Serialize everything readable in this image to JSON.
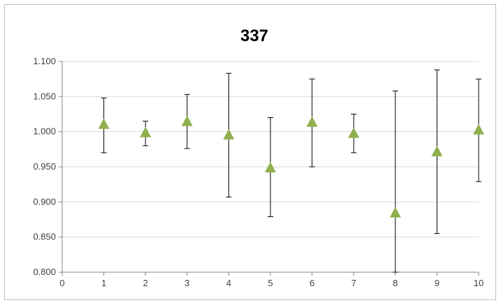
{
  "chart_data": {
    "type": "scatter",
    "title": "337",
    "xlabel": "",
    "ylabel": "",
    "xlim": [
      0,
      10
    ],
    "ylim": [
      0.8,
      1.1
    ],
    "x_ticks": [
      "0",
      "1",
      "2",
      "3",
      "4",
      "5",
      "6",
      "7",
      "8",
      "9",
      "10"
    ],
    "y_ticks": [
      "0.800",
      "0.850",
      "0.900",
      "0.950",
      "1.000",
      "1.050",
      "1.100"
    ],
    "grid": true,
    "legend": "none",
    "marker": "triangle",
    "marker_color": "#8fb04d",
    "series": [
      {
        "x": [
          1,
          2,
          3,
          4,
          5,
          6,
          7,
          8,
          9,
          10
        ],
        "y": [
          1.01,
          0.998,
          1.014,
          0.995,
          0.948,
          1.013,
          0.997,
          0.884,
          0.971,
          1.002
        ],
        "y_err_low": [
          0.97,
          0.98,
          0.976,
          0.907,
          0.879,
          0.95,
          0.97,
          0.8,
          0.855,
          0.929
        ],
        "y_err_high": [
          1.048,
          1.015,
          1.053,
          1.083,
          1.02,
          1.075,
          1.025,
          1.058,
          1.088,
          1.075
        ]
      }
    ]
  }
}
